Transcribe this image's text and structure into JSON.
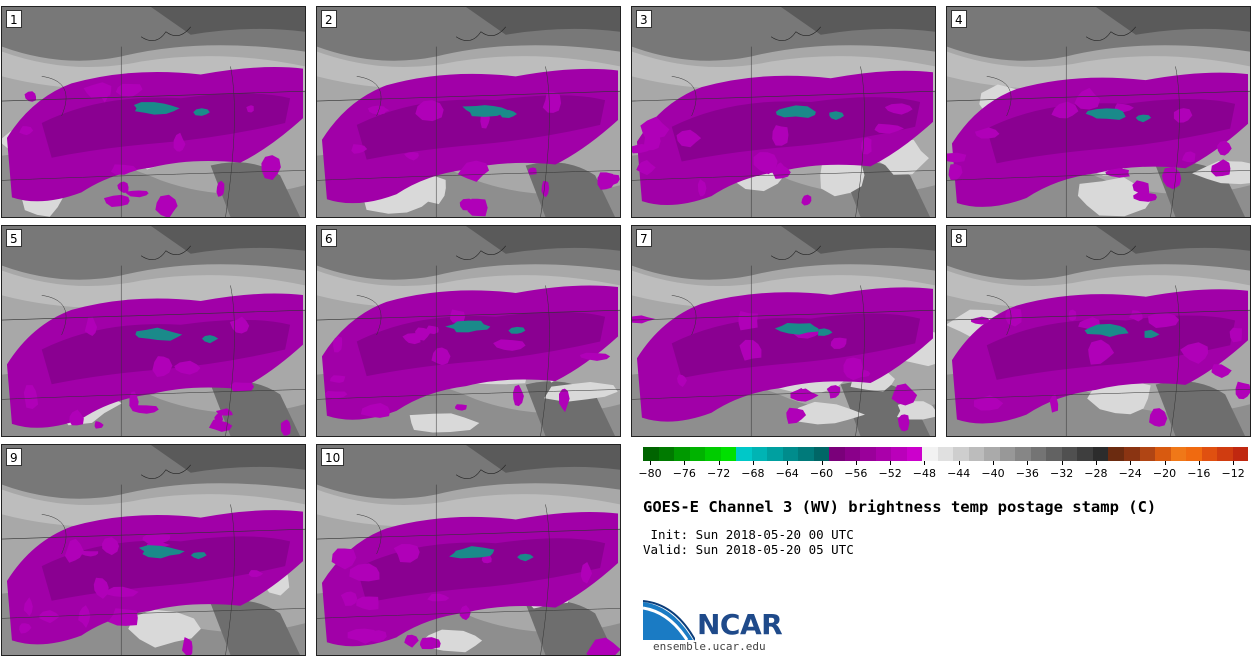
{
  "title": "GOES-E Channel 3 (WV) brightness temp postage stamp (C)",
  "init_line": " Init: Sun 2018-05-20 00 UTC",
  "valid_line": "Valid: Sun 2018-05-20 05 UTC",
  "logo": {
    "wordmark": "NCAR",
    "url": "ensemble.ucar.edu"
  },
  "panels": [
    {
      "label": "1"
    },
    {
      "label": "2"
    },
    {
      "label": "3"
    },
    {
      "label": "4"
    },
    {
      "label": "5"
    },
    {
      "label": "6"
    },
    {
      "label": "7"
    },
    {
      "label": "8"
    },
    {
      "label": "9"
    },
    {
      "label": "10"
    }
  ],
  "colorbar": {
    "ticks": [
      "−80",
      "−76",
      "−72",
      "−68",
      "−64",
      "−60",
      "−56",
      "−52",
      "−48",
      "−44",
      "−40",
      "−36",
      "−32",
      "−28",
      "−24",
      "−20",
      "−16",
      "−12"
    ],
    "colors": [
      "#006400",
      "#007a00",
      "#009900",
      "#00b300",
      "#00cc00",
      "#00e000",
      "#00c8c8",
      "#00b4b4",
      "#00a0a0",
      "#008c8c",
      "#007a7a",
      "#006666",
      "#7a007a",
      "#8a008a",
      "#9a009a",
      "#aa00aa",
      "#ba00ba",
      "#cc00cc",
      "#f2f2f2",
      "#e0e0e0",
      "#cecece",
      "#bcbcbc",
      "#aaaaaa",
      "#989898",
      "#868686",
      "#747474",
      "#626262",
      "#505050",
      "#3e3e3e",
      "#2c2c2c",
      "#6b2b10",
      "#8a3412",
      "#b04514",
      "#d85a10",
      "#f07818",
      "#f06a10",
      "#e05010",
      "#d03c10",
      "#c02810"
    ]
  }
}
